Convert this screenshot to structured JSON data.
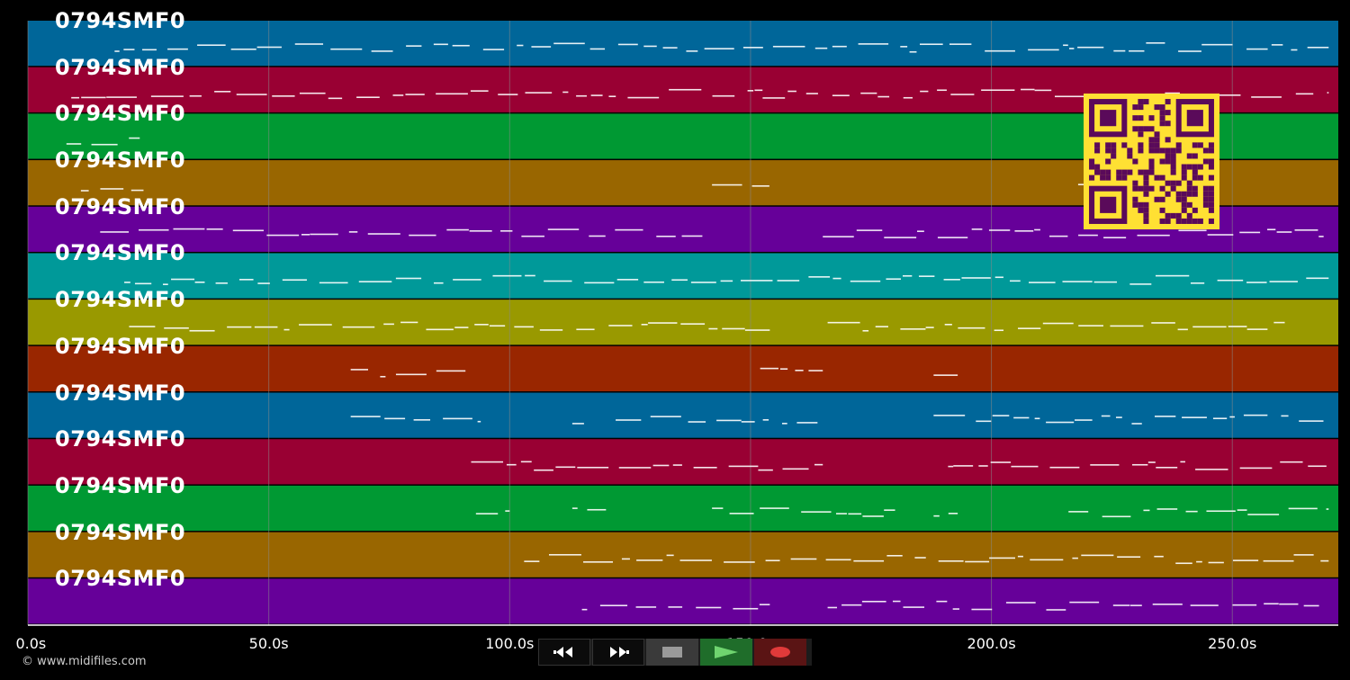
{
  "tracks": [
    {
      "label": "0794SMF0",
      "color": "#006699"
    },
    {
      "label": "0794SMF0",
      "color": "#990033"
    },
    {
      "label": "0794SMF0",
      "color": "#009933"
    },
    {
      "label": "0794SMF0",
      "color": "#996600"
    },
    {
      "label": "0794SMF0",
      "color": "#660099"
    },
    {
      "label": "0794SMF0",
      "color": "#009999"
    },
    {
      "label": "0794SMF0",
      "color": "#999900"
    },
    {
      "label": "0794SMF0",
      "color": "#992600"
    },
    {
      "label": "0794SMF0",
      "color": "#006699"
    },
    {
      "label": "0794SMF0",
      "color": "#990033"
    },
    {
      "label": "0794SMF0",
      "color": "#009933"
    },
    {
      "label": "0794SMF0",
      "color": "#996600"
    },
    {
      "label": "0794SMF0",
      "color": "#660099"
    }
  ],
  "timeline": {
    "ticks": [
      "0.0s",
      "50.0s",
      "100.0s",
      "150.0s",
      "200.0s",
      "250.0s"
    ],
    "tick_values": [
      0,
      50,
      100,
      150,
      200,
      250
    ],
    "max_seconds": 272
  },
  "copyright": "© www.midifiles.com",
  "controls": {
    "rewind": "rewind-icon",
    "fast_forward": "fast-forward-icon",
    "stop": "stop-icon",
    "play": "play-icon",
    "record": "record-icon"
  },
  "colors": {
    "background": "#000000",
    "note": "#ffffff",
    "grid": "#8a8a8a",
    "qr_fg": "#ffe033",
    "qr_bg": "#5a0a5a"
  }
}
